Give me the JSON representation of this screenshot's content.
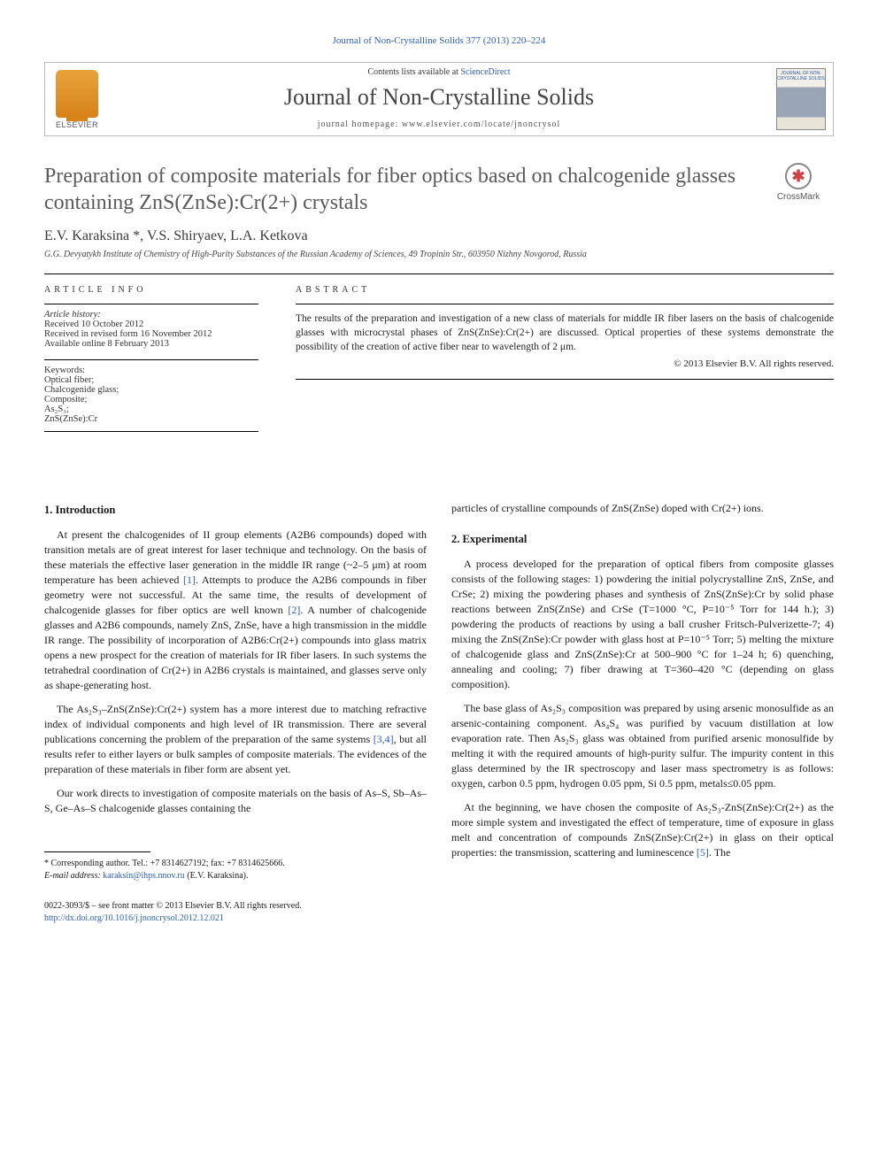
{
  "top_citation": "Journal of Non-Crystalline Solids 377 (2013) 220–224",
  "header": {
    "contents_prefix": "Contents lists available at ",
    "contents_link": "ScienceDirect",
    "journal_name": "Journal of Non-Crystalline Solids",
    "homepage_label": "journal homepage: www.elsevier.com/locate/jnoncrysol",
    "publisher_label": "ELSEVIER",
    "cover_text": "JOURNAL OF NON-CRYSTALLINE SOLIDS"
  },
  "crossmark_label": "CrossMark",
  "title": "Preparation of composite materials for fiber optics based on chalcogenide glasses containing ZnS(ZnSe):Cr(2+) crystals",
  "authors_line": "E.V. Karaksina *, V.S. Shiryaev, L.A. Ketkova",
  "affiliation": "G.G. Devyatykh Institute of Chemistry of High-Purity Substances of the Russian Academy of Sciences, 49 Tropinin Str., 603950 Nizhny Novgorod, Russia",
  "article_info": {
    "heading": "article info",
    "history_label": "Article history:",
    "received": "Received 10 October 2012",
    "revised": "Received in revised form 16 November 2012",
    "online": "Available online 8 February 2013",
    "keywords_label": "Keywords:",
    "keywords": "Optical fiber;\nChalcogenide glass;\nComposite;\nAs₂S₃;\nZnS(ZnSe):Cr"
  },
  "abstract": {
    "heading": "abstract",
    "text": "The results of the preparation and investigation of a new class of materials for middle IR fiber lasers on the basis of chalcogenide glasses with microcrystal phases of ZnS(ZnSe):Cr(2+) are discussed. Optical properties of these systems demonstrate the possibility of the creation of active fiber near to wavelength of 2 μm.",
    "copyright": "© 2013 Elsevier B.V. All rights reserved."
  },
  "sections": {
    "intro_heading": "1. Introduction",
    "intro_p1": "At present the chalcogenides of II group elements (A2B6 compounds) doped with transition metals are of great interest for laser technique and technology. On the basis of these materials the effective laser generation in the middle IR range (~2–5 μm) at room temperature has been achieved [1]. Attempts to produce the A2B6 compounds in fiber geometry were not successful. At the same time, the results of development of chalcogenide glasses for fiber optics are well known [2]. A number of chalcogenide glasses and A2B6 compounds, namely ZnS, ZnSe, have a high transmission in the middle IR range. The possibility of incorporation of A2B6:Cr(2+) compounds into glass matrix opens a new prospect for the creation of materials for IR fiber lasers. In such systems the tetrahedral coordination of Cr(2+) in A2B6 crystals is maintained, and glasses serve only as shape-generating host.",
    "intro_p2": "The As₂S₃–ZnS(ZnSe):Cr(2+) system has a more interest due to matching refractive index of individual components and high level of IR transmission. There are several publications concerning the problem of the preparation of the same systems [3,4], but all results refer to either layers or bulk samples of composite materials. The evidences of the preparation of these materials in fiber form are absent yet.",
    "intro_p3": "Our work directs to investigation of composite materials on the basis of As–S, Sb–As–S, Ge–As–S chalcogenide glasses containing the",
    "right_top": "particles of crystalline compounds of ZnS(ZnSe) doped with Cr(2+) ions.",
    "exp_heading": "2. Experimental",
    "exp_p1": "A process developed for the preparation of optical fibers from composite glasses consists of the following stages: 1) powdering the initial polycrystalline ZnS, ZnSe, and CrSe; 2) mixing the powdering phases and synthesis of ZnS(ZnSe):Cr by solid phase reactions between ZnS(ZnSe) and CrSe (T=1000 °C, P=10⁻⁵ Torr for 144 h.); 3) powdering the products of reactions by using a ball crusher Fritsch-Pulverizette-7; 4) mixing the ZnS(ZnSe):Cr powder with glass host at P=10⁻⁵ Torr; 5) melting the mixture of chalcogenide glass and ZnS(ZnSe):Cr at 500–900 °C for 1–24 h; 6) quenching, annealing and cooling; 7) fiber drawing at T=360–420 °C (depending on glass composition).",
    "exp_p2": "The base glass of As₂S₃ composition was prepared by using arsenic monosulfide as an arsenic-containing component. As₄S₄ was purified by vacuum distillation at low evaporation rate. Then As₂S₃ glass was obtained from purified arsenic monosulfide by melting it with the required amounts of high-purity sulfur. The impurity content in this glass determined by the IR spectroscopy and laser mass spectrometry is as follows: oxygen, carbon 0.5 ppm, hydrogen 0.05 ppm, Si 0.5 ppm, metals≤0.05 ppm.",
    "exp_p3": "At the beginning, we have chosen the composite of As₂S₃-ZnS(ZnSe):Cr(2+) as the more simple system and investigated the effect of temperature, time of exposure in glass melt and concentration of compounds ZnS(ZnSe):Cr(2+) in glass on their optical properties: the transmission, scattering and luminescence [5]. The"
  },
  "footnote": {
    "corr": "* Corresponding author. Tel.: +7 8314627192; fax: +7 8314625666.",
    "email_label": "E-mail address: ",
    "email": "karaksin@ihps.nnov.ru",
    "email_suffix": " (E.V. Karaksina)."
  },
  "bottom": {
    "issn": "0022-3093/$ – see front matter © 2013 Elsevier B.V. All rights reserved.",
    "doi": "http://dx.doi.org/10.1016/j.jnoncrysol.2012.12.021"
  },
  "colors": {
    "link": "#2c5db3",
    "text": "#1a1a1a",
    "heading_gray": "#5a5a5a",
    "elsevier_orange": "#d8821a"
  }
}
